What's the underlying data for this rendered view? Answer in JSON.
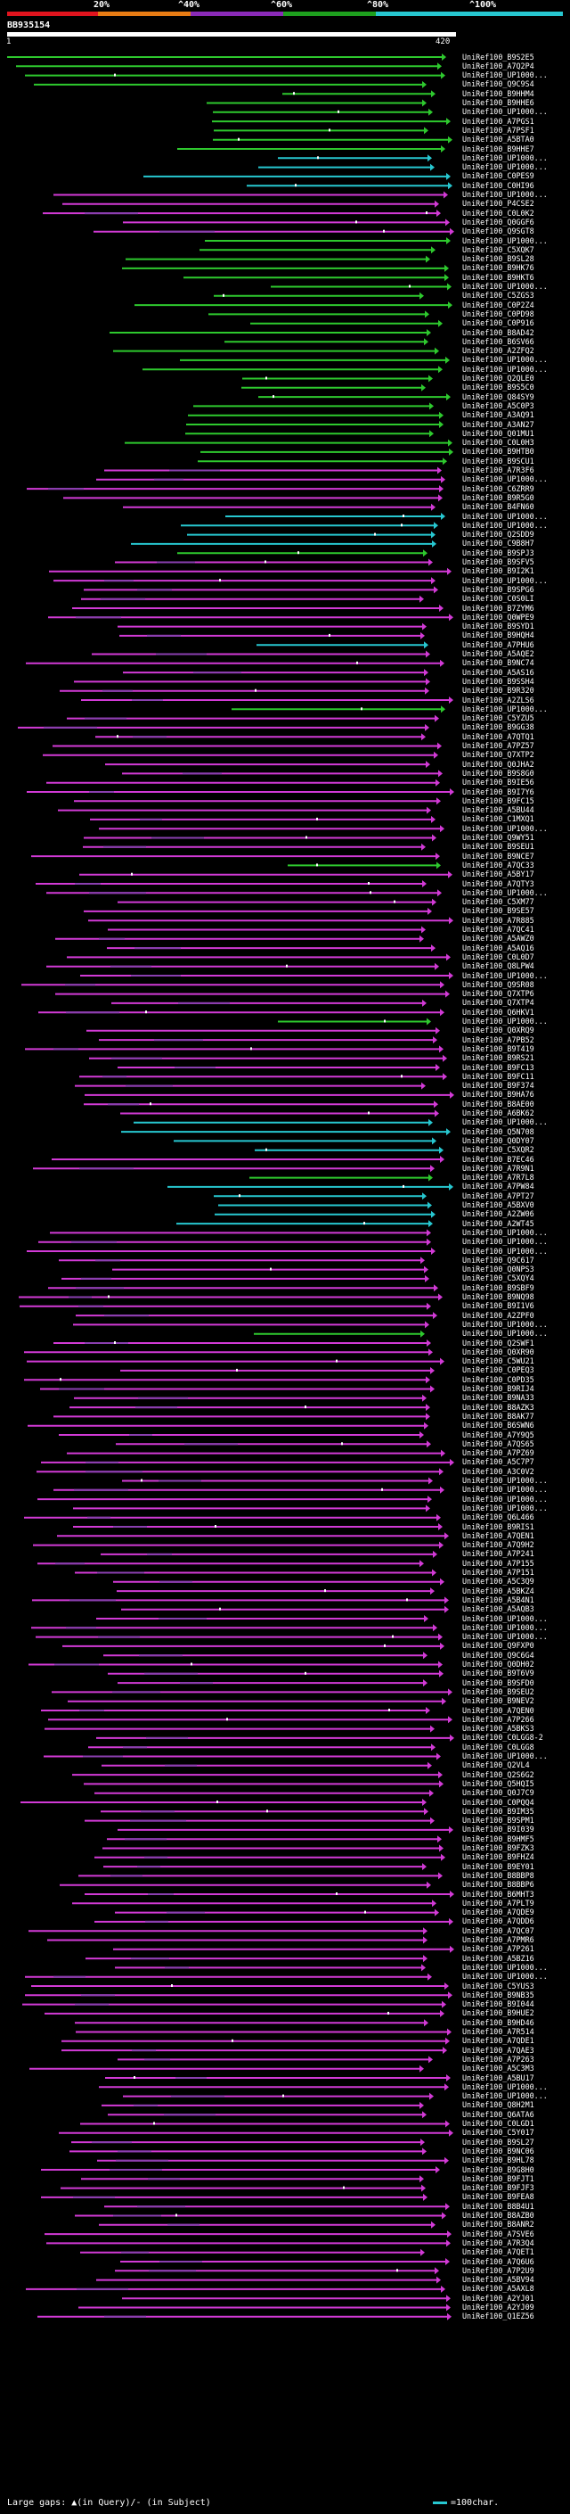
{
  "scale": {
    "percent_labels": [
      "20%",
      "^40%",
      "^60%",
      "^80%",
      "^100%"
    ],
    "band_colors": [
      "#e0141e",
      "#e87c14",
      "#8a2ab8",
      "#1ea01e",
      "#27c7d0"
    ]
  },
  "query": {
    "id": "BB935154",
    "start": "1",
    "end": "420"
  },
  "hit_colors": {
    "green": "#2ec92e",
    "magenta": "#d23ad6",
    "cyan": "#27c7d0",
    "purple": "#8a3fb0"
  },
  "hits": [
    "UniRef100_B9S2E5",
    "UniRef100_A7Q2P4",
    "UniRef100_UP1000...",
    "UniRef100_Q9C9S4",
    "UniRef100_B9HHM4",
    "UniRef100_B9HHE6",
    "UniRef100_UP1000...",
    "UniRef100_A7PGS1",
    "UniRef100_A7PSF1",
    "UniRef100_A5BTA0",
    "UniRef100_B9HHE7",
    "UniRef100_UP1000...",
    "UniRef100_UP1000...",
    "UniRef100_C0PES9",
    "UniRef100_C0HI96",
    "UniRef100_UP1000...",
    "UniRef100_P4CSE2",
    "UniRef100_C0L0K2",
    "UniRef100_Q0GGF6",
    "UniRef100_Q9SGT8",
    "UniRef100_UP1000...",
    "UniRef100_C5XQK7",
    "UniRef100_B9SL28",
    "UniRef100_B9HK76",
    "UniRef100_B9HKT6",
    "UniRef100_UP1000...",
    "UniRef100_C5ZGS3",
    "UniRef100_C0P2Z4",
    "UniRef100_C0PD98",
    "UniRef100_C0P916",
    "UniRef100_B8AD42",
    "UniRef100_B6SV66",
    "UniRef100_A2ZFQ2",
    "UniRef100_UP1000...",
    "UniRef100_UP1000...",
    "UniRef100_Q2QLE0",
    "UniRef100_B9S5C0",
    "UniRef100_Q84SY9",
    "UniRef100_A5C0P3",
    "UniRef100_A3AQ91",
    "UniRef100_A3AN27",
    "UniRef100_Q01MU1",
    "UniRef100_C0L0H3",
    "UniRef100_B9HTB0",
    "UniRef100_B9SCU1",
    "UniRef100_A7R3F6",
    "UniRef100_UP1000...",
    "UniRef100_C6ZRR9",
    "UniRef100_B9R5G0",
    "UniRef100_B4FN60",
    "UniRef100_UP1000...",
    "UniRef100_UP1000...",
    "UniRef100_Q2SDD9",
    "UniRef100_C9B8H7",
    "UniRef100_B9SPJ3",
    "UniRef100_B9SFV5",
    "UniRef100_B9I2K1",
    "UniRef100_UP1000...",
    "UniRef100_B9SPG6",
    "UniRef100_C0S0LI",
    "UniRef100_B7ZYM6",
    "UniRef100_Q0WPE9",
    "UniRef100_B9SYD1",
    "UniRef100_B9HQH4",
    "UniRef100_A7PHU6",
    "UniRef100_A5AQE2",
    "UniRef100_B9NC74",
    "UniRef100_A5AS16",
    "UniRef100_B9SSH4",
    "UniRef100_B9R320",
    "UniRef100_A2ZLS6",
    "UniRef100_UP1000...",
    "UniRef100_C5YZU5",
    "UniRef100_B9GG38",
    "UniRef100_A7QTQ1",
    "UniRef100_A7PZ57",
    "UniRef100_Q7XTP2",
    "UniRef100_Q0JHA2",
    "UniRef100_B9S8G0",
    "UniRef100_B9IE56",
    "UniRef100_B9I7Y6",
    "UniRef100_B9FC15",
    "UniRef100_A5BU44",
    "UniRef100_C1MXQ1",
    "UniRef100_UP1000...",
    "UniRef100_Q9WY51",
    "UniRef100_B9SEU1",
    "UniRef100_B9NCE7",
    "UniRef100_A7QC33",
    "UniRef100_A5BY17",
    "UniRef100_A7QTY3",
    "UniRef100_UP1000...",
    "UniRef100_C5XM77",
    "UniRef100_B9SE57",
    "UniRef100_A7R885",
    "UniRef100_A7QC41",
    "UniRef100_A5AWZ0",
    "UniRef100_A5AQ16",
    "UniRef100_C0L0D7",
    "UniRef100_Q8LPW4",
    "UniRef100_UP1000...",
    "UniRef100_Q9SR08",
    "UniRef100_Q7XTP6",
    "UniRef100_Q7XTP4",
    "UniRef100_Q6HKV1",
    "UniRef100_UP1000...",
    "UniRef100_Q0XRQ9",
    "UniRef100_A7PB52",
    "UniRef100_B9T419",
    "UniRef100_B9RS21",
    "UniRef100_B9FC13",
    "UniRef100_B9FC11",
    "UniRef100_B9F374",
    "UniRef100_B9HA76",
    "UniRef100_B8AE00",
    "UniRef100_A6BK62",
    "UniRef100_UP1000...",
    "UniRef100_Q5N708",
    "UniRef100_Q0DY07",
    "UniRef100_C5XQR2",
    "UniRef100_B7EC46",
    "UniRef100_A7R9N1",
    "UniRef100_A7R7L8",
    "UniRef100_A7PW84",
    "UniRef100_A7PT27",
    "UniRef100_A5BXV0",
    "UniRef100_A2ZW06",
    "UniRef100_A2WT45",
    "UniRef100_UP1000...",
    "UniRef100_UP1000...",
    "UniRef100_UP1000...",
    "UniRef100_Q9C617",
    "UniRef100_Q0NPS3",
    "UniRef100_C5XQY4",
    "UniRef100_B9SBF9",
    "UniRef100_B9NQ98",
    "UniRef100_B9I1V6",
    "UniRef100_A2ZPF0",
    "UniRef100_UP1000...",
    "UniRef100_UP1000...",
    "UniRef100_Q2SWF1",
    "UniRef100_Q0XR90",
    "UniRef100_C5WU21",
    "UniRef100_C0PEQ3",
    "UniRef100_C0PD35",
    "UniRef100_B9RIJ4",
    "UniRef100_B9NA33",
    "UniRef100_B8AZK3",
    "UniRef100_B8AK77",
    "UniRef100_B6SWN6",
    "UniRef100_A7Y9Q5",
    "UniRef100_A7QS65",
    "UniRef100_A7PZ69",
    "UniRef100_A5C7P7",
    "UniRef100_A3C0V2",
    "UniRef100_UP1000...",
    "UniRef100_UP1000...",
    "UniRef100_UP1000...",
    "UniRef100_UP1000...",
    "UniRef100_Q6L466",
    "UniRef100_B9RIS1",
    "UniRef100_A7QEN1",
    "UniRef100_A7Q9H2",
    "UniRef100_A7P241",
    "UniRef100_A7P155",
    "UniRef100_A7P151",
    "UniRef100_A5C3Q9",
    "UniRef100_A5BKZ4",
    "UniRef100_A5B4N1",
    "UniRef100_A5AQB3",
    "UniRef100_UP1000...",
    "UniRef100_UP1000...",
    "UniRef100_UP1000...",
    "UniRef100_Q9FXP0",
    "UniRef100_Q9C6G4",
    "UniRef100_Q0DH02",
    "UniRef100_B9T6V9",
    "UniRef100_B9SFD0",
    "UniRef100_B9SEU2",
    "UniRef100_B9NEV2",
    "UniRef100_A7QEN0",
    "UniRef100_A7P266",
    "UniRef100_A5BKS3",
    "UniRef100_C0LGG8-2",
    "UniRef100_C0LGG8",
    "UniRef100_UP1000...",
    "UniRef100_Q2VL4",
    "UniRef100_Q2S6G2",
    "UniRef100_Q5HQI5",
    "UniRef100_Q0J7C9",
    "UniRef100_C0PQQ4",
    "UniRef100_B9IM35",
    "UniRef100_B9SPM1",
    "UniRef100_B9I039",
    "UniRef100_B9HMF5",
    "UniRef100_B9FZK3",
    "UniRef100_B9FHZ4",
    "UniRef100_B9EY01",
    "UniRef100_B8BBP8",
    "UniRef100_B8BBP6",
    "UniRef100_B6MHT3",
    "UniRef100_A7PLT9",
    "UniRef100_A7QDE9",
    "UniRef100_A7QDD6",
    "UniRef100_A7QC07",
    "UniRef100_A7PMR6",
    "UniRef100_A7P261",
    "UniRef100_A5BZ16",
    "UniRef100_UP1000...",
    "UniRef100_UP1000...",
    "UniRef100_C5YUS3",
    "UniRef100_B9NB35",
    "UniRef100_B9I044",
    "UniRef100_B9HUE2",
    "UniRef100_B9HD46",
    "UniRef100_A7R514",
    "UniRef100_A7QDE1",
    "UniRef100_A7QAE3",
    "UniRef100_A7P263",
    "UniRef100_A5C3M3",
    "UniRef100_A5BU17",
    "UniRef100_UP1000...",
    "UniRef100_UP1000...",
    "UniRef100_Q8H2M1",
    "UniRef100_Q6ATA6",
    "UniRef100_C0LGD1",
    "UniRef100_C5Y017",
    "UniRef100_B9SL27",
    "UniRef100_B9NC06",
    "UniRef100_B9HL78",
    "UniRef100_B9G8H0",
    "UniRef100_B9FJT1",
    "UniRef100_B9FJF3",
    "UniRef100_B9FEA8",
    "UniRef100_B8B4U1",
    "UniRef100_B8AZB0",
    "UniRef100_B8ANR2",
    "UniRef100_A7SVE6",
    "UniRef100_A7R3Q4",
    "UniRef100_A7QET1",
    "UniRef100_A7Q6U6",
    "UniRef100_A7P2U9",
    "UniRef100_A5BV94",
    "UniRef100_A5AXL8",
    "UniRef100_A2YJ01",
    "UniRef100_A2YJ09",
    "UniRef100_Q1EZ56"
  ],
  "legend": {
    "gaps_text": "Large gaps: ▲(in Query)/- (in Subject)",
    "scale_text": "=100char."
  }
}
